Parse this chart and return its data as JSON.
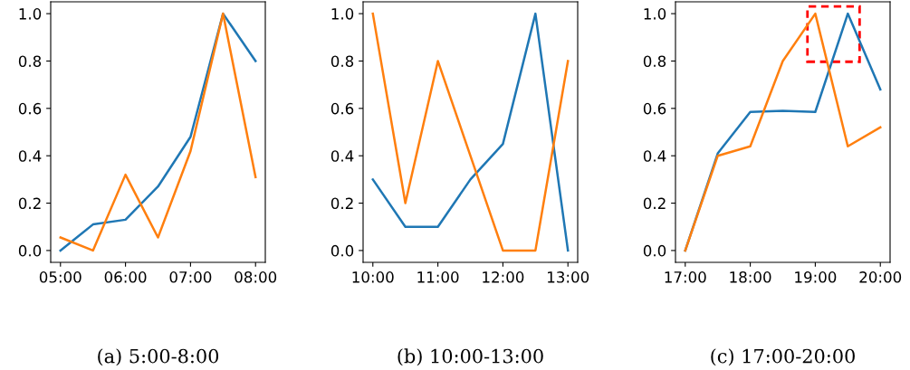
{
  "chart_data": [
    {
      "type": "line",
      "xlabel": "(a) 5:00-8:00",
      "x": [
        5,
        5.5,
        6,
        6.5,
        7,
        7.5,
        8
      ],
      "xlim": [
        4.85,
        8.15
      ],
      "ylim": [
        -0.05,
        1.05
      ],
      "xticks": [
        {
          "value": 5,
          "label": "05:00"
        },
        {
          "value": 6,
          "label": "06:00"
        },
        {
          "value": 7,
          "label": "07:00"
        },
        {
          "value": 8,
          "label": "08:00"
        }
      ],
      "yticks": [
        {
          "value": 0,
          "label": "0.0"
        },
        {
          "value": 0.2,
          "label": "0.2"
        },
        {
          "value": 0.4,
          "label": "0.4"
        },
        {
          "value": 0.6,
          "label": "0.6"
        },
        {
          "value": 0.8,
          "label": "0.8"
        },
        {
          "value": 1,
          "label": "1.0"
        }
      ],
      "series": [
        {
          "color": "#1f77b4",
          "values": [
            0,
            0.11,
            0.13,
            0.27,
            0.48,
            1.0,
            0.8
          ]
        },
        {
          "color": "#ff7f0e",
          "values": [
            0.055,
            0,
            0.32,
            0.055,
            0.42,
            1.0,
            0.31
          ]
        }
      ]
    },
    {
      "type": "line",
      "xlabel": "(b) 10:00-13:00",
      "x": [
        10,
        10.5,
        11,
        11.5,
        12,
        12.5,
        13
      ],
      "xlim": [
        9.85,
        13.15
      ],
      "ylim": [
        -0.05,
        1.05
      ],
      "xticks": [
        {
          "value": 10,
          "label": "10:00"
        },
        {
          "value": 11,
          "label": "11:00"
        },
        {
          "value": 12,
          "label": "12:00"
        },
        {
          "value": 13,
          "label": "13:00"
        }
      ],
      "yticks": [
        {
          "value": 0,
          "label": "0.0"
        },
        {
          "value": 0.2,
          "label": "0.2"
        },
        {
          "value": 0.4,
          "label": "0.4"
        },
        {
          "value": 0.6,
          "label": "0.6"
        },
        {
          "value": 0.8,
          "label": "0.8"
        },
        {
          "value": 1,
          "label": "1.0"
        }
      ],
      "series": [
        {
          "color": "#1f77b4",
          "values": [
            0.3,
            0.1,
            0.1,
            0.3,
            0.45,
            1.0,
            0
          ]
        },
        {
          "color": "#ff7f0e",
          "values": [
            1.0,
            0.2,
            0.8,
            0.4,
            0,
            0,
            0.8
          ]
        }
      ]
    },
    {
      "type": "line",
      "xlabel": "(c) 17:00-20:00",
      "x": [
        17,
        17.5,
        18,
        18.5,
        19,
        19.5,
        20
      ],
      "xlim": [
        16.85,
        20.15
      ],
      "ylim": [
        -0.05,
        1.05
      ],
      "xticks": [
        {
          "value": 17,
          "label": "17:00"
        },
        {
          "value": 18,
          "label": "18:00"
        },
        {
          "value": 19,
          "label": "19:00"
        },
        {
          "value": 20,
          "label": "20:00"
        }
      ],
      "yticks": [
        {
          "value": 0,
          "label": "0.0"
        },
        {
          "value": 0.2,
          "label": "0.2"
        },
        {
          "value": 0.4,
          "label": "0.4"
        },
        {
          "value": 0.6,
          "label": "0.6"
        },
        {
          "value": 0.8,
          "label": "0.8"
        },
        {
          "value": 1,
          "label": "1.0"
        }
      ],
      "series": [
        {
          "color": "#1f77b4",
          "values": [
            0,
            0.41,
            0.585,
            0.59,
            0.585,
            1.0,
            0.68
          ]
        },
        {
          "color": "#ff7f0e",
          "values": [
            0,
            0.4,
            0.44,
            0.8,
            1.0,
            0.44,
            0.52
          ]
        }
      ]
    }
  ]
}
